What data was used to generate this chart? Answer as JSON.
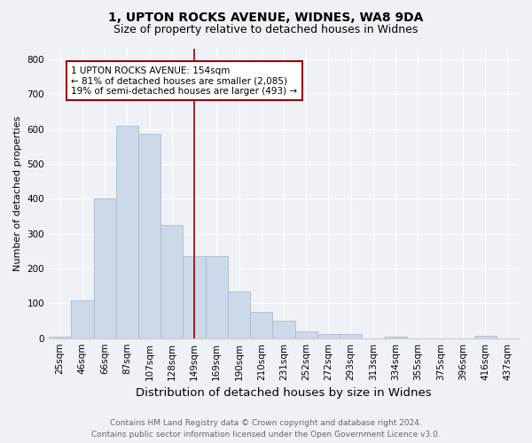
{
  "title": "1, UPTON ROCKS AVENUE, WIDNES, WA8 9DA",
  "subtitle": "Size of property relative to detached houses in Widnes",
  "xlabel": "Distribution of detached houses by size in Widnes",
  "ylabel": "Number of detached properties",
  "categories": [
    "25sqm",
    "46sqm",
    "66sqm",
    "87sqm",
    "107sqm",
    "128sqm",
    "149sqm",
    "169sqm",
    "190sqm",
    "210sqm",
    "231sqm",
    "252sqm",
    "272sqm",
    "293sqm",
    "313sqm",
    "334sqm",
    "355sqm",
    "375sqm",
    "396sqm",
    "416sqm",
    "437sqm"
  ],
  "values": [
    5,
    108,
    400,
    610,
    585,
    325,
    235,
    235,
    135,
    75,
    50,
    20,
    12,
    12,
    0,
    3,
    0,
    0,
    0,
    7,
    0
  ],
  "bar_color": "#ccd9e8",
  "bar_edge_color": "#aabcce",
  "subject_line_color": "#9b0000",
  "subject_line_index": 6.5,
  "annotation_text": "1 UPTON ROCKS AVENUE: 154sqm\n← 81% of detached houses are smaller (2,085)\n19% of semi-detached houses are larger (493) →",
  "annotation_box_color": "#9b0000",
  "ylim": [
    0,
    830
  ],
  "yticks": [
    0,
    100,
    200,
    300,
    400,
    500,
    600,
    700,
    800
  ],
  "footer_line1": "Contains HM Land Registry data © Crown copyright and database right 2024.",
  "footer_line2": "Contains public sector information licensed under the Open Government Licence v3.0.",
  "bg_color": "#eef2f7",
  "plot_bg_color": "#eef2f7",
  "grid_color": "#ffffff",
  "title_fontsize": 10,
  "subtitle_fontsize": 9,
  "xlabel_fontsize": 9.5,
  "ylabel_fontsize": 8,
  "tick_fontsize": 7.5,
  "annotation_fontsize": 7.5,
  "footer_fontsize": 6.5
}
